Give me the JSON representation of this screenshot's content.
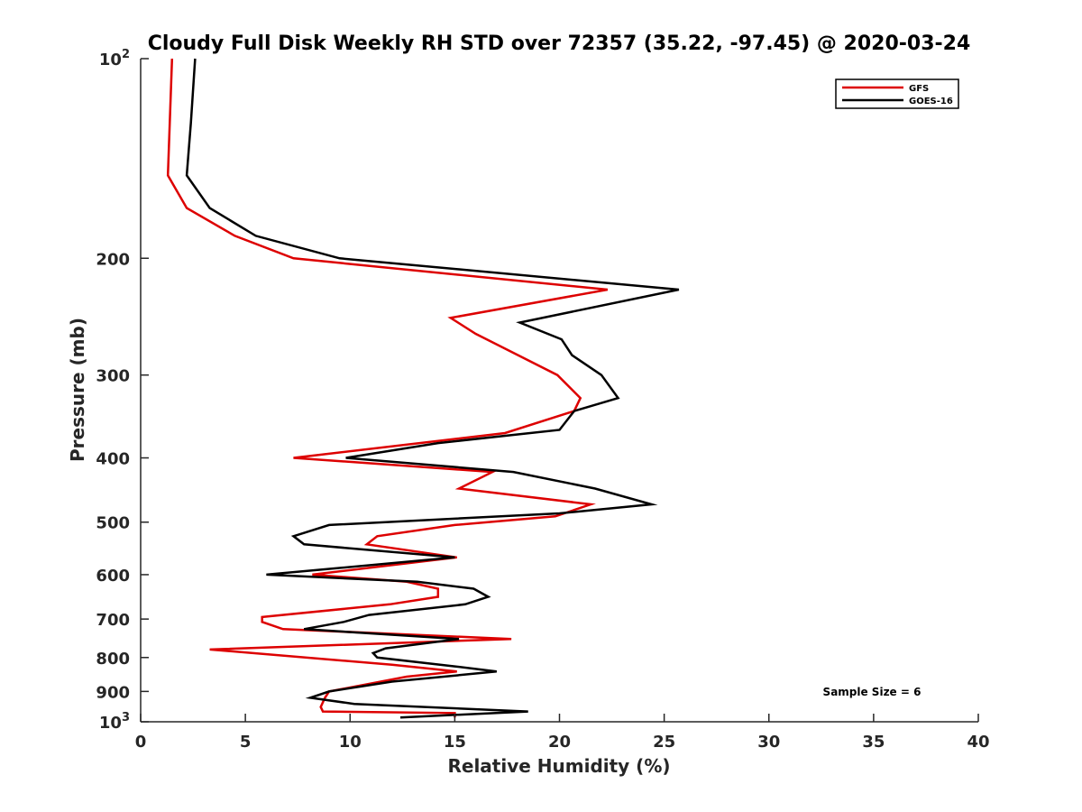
{
  "chart_data": {
    "type": "line",
    "title": "Cloudy Full Disk Weekly RH STD over 72357 (35.22, -97.45) @ 2020-03-24",
    "xlabel": "Relative Humidity (%)",
    "ylabel": "Pressure (mb)",
    "xlim": [
      0,
      40
    ],
    "ylim": [
      100,
      1000
    ],
    "y_scale": "log",
    "y_reversed": true,
    "x_ticks": [
      "0",
      "5",
      "10",
      "15",
      "20",
      "25",
      "30",
      "35",
      "40"
    ],
    "y_ticks": [
      {
        "value": 100,
        "base": "10",
        "exp": "2"
      },
      {
        "value": 200,
        "label": "200"
      },
      {
        "value": 300,
        "label": "300"
      },
      {
        "value": 400,
        "label": "400"
      },
      {
        "value": 500,
        "label": "500"
      },
      {
        "value": 600,
        "label": "600"
      },
      {
        "value": 700,
        "label": "700"
      },
      {
        "value": 800,
        "label": "800"
      },
      {
        "value": 900,
        "label": "900"
      },
      {
        "value": 1000,
        "base": "10",
        "exp": "3"
      }
    ],
    "grid": false,
    "legend_position": "top-right",
    "annotation": "Sample Size = 6",
    "series": [
      {
        "name": "GFS",
        "color": "#dd0000",
        "points": [
          [
            1.5,
            100
          ],
          [
            1.3,
            150
          ],
          [
            2.2,
            168
          ],
          [
            4.5,
            185
          ],
          [
            7.3,
            200
          ],
          [
            22.3,
            223
          ],
          [
            14.8,
            246
          ],
          [
            16.0,
            260
          ],
          [
            19.9,
            300
          ],
          [
            21.0,
            325
          ],
          [
            20.7,
            340
          ],
          [
            17.4,
            367
          ],
          [
            7.3,
            400
          ],
          [
            16.8,
            420
          ],
          [
            15.2,
            445
          ],
          [
            21.5,
            470
          ],
          [
            19.8,
            490
          ],
          [
            15.0,
            505
          ],
          [
            11.3,
            525
          ],
          [
            10.8,
            540
          ],
          [
            15.1,
            565
          ],
          [
            8.2,
            600
          ],
          [
            12.7,
            615
          ],
          [
            14.2,
            630
          ],
          [
            14.2,
            648
          ],
          [
            11.9,
            665
          ],
          [
            5.8,
            695
          ],
          [
            5.8,
            707
          ],
          [
            6.8,
            725
          ],
          [
            17.7,
            750
          ],
          [
            3.3,
            778
          ],
          [
            12.0,
            820
          ],
          [
            15.1,
            840
          ],
          [
            12.7,
            855
          ],
          [
            9.0,
            900
          ],
          [
            8.8,
            920
          ],
          [
            8.6,
            950
          ],
          [
            8.7,
            965
          ],
          [
            15.0,
            970
          ],
          [
            15.0,
            985
          ]
        ]
      },
      {
        "name": "GOES-16",
        "color": "#000000",
        "points": [
          [
            2.6,
            100
          ],
          [
            2.4,
            125
          ],
          [
            2.2,
            150
          ],
          [
            3.3,
            168
          ],
          [
            5.5,
            185
          ],
          [
            9.5,
            200
          ],
          [
            25.7,
            223
          ],
          [
            18.1,
            250
          ],
          [
            20.1,
            265
          ],
          [
            20.6,
            280
          ],
          [
            22.0,
            300
          ],
          [
            22.8,
            325
          ],
          [
            20.7,
            340
          ],
          [
            20.0,
            363
          ],
          [
            14.2,
            380
          ],
          [
            9.8,
            400
          ],
          [
            17.8,
            420
          ],
          [
            21.7,
            445
          ],
          [
            24.4,
            470
          ],
          [
            20.0,
            485
          ],
          [
            9.0,
            505
          ],
          [
            7.3,
            525
          ],
          [
            7.8,
            540
          ],
          [
            15.0,
            565
          ],
          [
            6.0,
            600
          ],
          [
            13.2,
            615
          ],
          [
            15.9,
            630
          ],
          [
            16.6,
            648
          ],
          [
            15.5,
            665
          ],
          [
            10.9,
            690
          ],
          [
            9.7,
            707
          ],
          [
            7.8,
            725
          ],
          [
            15.2,
            750
          ],
          [
            11.7,
            775
          ],
          [
            11.1,
            788
          ],
          [
            11.3,
            800
          ],
          [
            15.0,
            825
          ],
          [
            17.0,
            840
          ],
          [
            12.0,
            870
          ],
          [
            9.0,
            900
          ],
          [
            8.1,
            920
          ],
          [
            10.2,
            940
          ],
          [
            18.5,
            965
          ],
          [
            12.4,
            985
          ]
        ]
      }
    ]
  }
}
